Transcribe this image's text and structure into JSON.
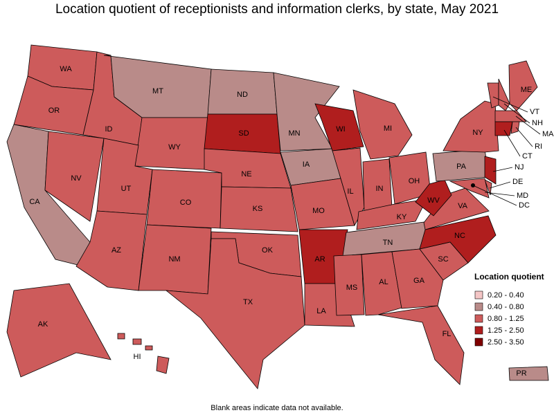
{
  "title": "Location quotient of receptionists and information clerks, by state, May 2021",
  "note": "Blank areas indicate data not available.",
  "legend": {
    "title": "Location quotient",
    "items": [
      {
        "label": "0.20 - 0.40",
        "color": "#f4c6c6"
      },
      {
        "label": "0.40 - 0.80",
        "color": "#b98b89"
      },
      {
        "label": "0.80 - 1.25",
        "color": "#cd5b5b"
      },
      {
        "label": "1.25 - 2.50",
        "color": "#b01e1e"
      },
      {
        "label": "2.50 - 3.50",
        "color": "#7f0000"
      }
    ]
  },
  "states": [
    {
      "name": "WA",
      "range": "0.80 - 1.25"
    },
    {
      "name": "OR",
      "range": "0.80 - 1.25"
    },
    {
      "name": "CA",
      "range": "0.40 - 0.80"
    },
    {
      "name": "NV",
      "range": "0.80 - 1.25"
    },
    {
      "name": "ID",
      "range": "0.80 - 1.25"
    },
    {
      "name": "MT",
      "range": "0.40 - 0.80"
    },
    {
      "name": "WY",
      "range": "0.80 - 1.25"
    },
    {
      "name": "UT",
      "range": "0.80 - 1.25"
    },
    {
      "name": "AZ",
      "range": "0.80 - 1.25"
    },
    {
      "name": "CO",
      "range": "0.80 - 1.25"
    },
    {
      "name": "NM",
      "range": "0.80 - 1.25"
    },
    {
      "name": "ND",
      "range": "0.40 - 0.80"
    },
    {
      "name": "SD",
      "range": "1.25 - 2.50"
    },
    {
      "name": "NE",
      "range": "0.80 - 1.25"
    },
    {
      "name": "KS",
      "range": "0.80 - 1.25"
    },
    {
      "name": "OK",
      "range": "0.80 - 1.25"
    },
    {
      "name": "TX",
      "range": "0.80 - 1.25"
    },
    {
      "name": "MN",
      "range": "0.40 - 0.80"
    },
    {
      "name": "IA",
      "range": "0.40 - 0.80"
    },
    {
      "name": "MO",
      "range": "0.80 - 1.25"
    },
    {
      "name": "AR",
      "range": "1.25 - 2.50"
    },
    {
      "name": "LA",
      "range": "0.80 - 1.25"
    },
    {
      "name": "WI",
      "range": "1.25 - 2.50"
    },
    {
      "name": "IL",
      "range": "0.80 - 1.25"
    },
    {
      "name": "MI",
      "range": "0.80 - 1.25"
    },
    {
      "name": "IN",
      "range": "0.80 - 1.25"
    },
    {
      "name": "OH",
      "range": "0.80 - 1.25"
    },
    {
      "name": "KY",
      "range": "0.80 - 1.25"
    },
    {
      "name": "TN",
      "range": "0.40 - 0.80"
    },
    {
      "name": "MS",
      "range": "0.80 - 1.25"
    },
    {
      "name": "AL",
      "range": "0.80 - 1.25"
    },
    {
      "name": "GA",
      "range": "0.80 - 1.25"
    },
    {
      "name": "FL",
      "range": "0.80 - 1.25"
    },
    {
      "name": "SC",
      "range": "0.80 - 1.25"
    },
    {
      "name": "NC",
      "range": "1.25 - 2.50"
    },
    {
      "name": "VA",
      "range": "0.80 - 1.25"
    },
    {
      "name": "WV",
      "range": "1.25 - 2.50"
    },
    {
      "name": "PA",
      "range": "0.40 - 0.80"
    },
    {
      "name": "NY",
      "range": "0.80 - 1.25"
    },
    {
      "name": "VT",
      "range": "0.80 - 1.25"
    },
    {
      "name": "NH",
      "range": "0.80 - 1.25"
    },
    {
      "name": "ME",
      "range": "0.80 - 1.25"
    },
    {
      "name": "MA",
      "range": "0.80 - 1.25"
    },
    {
      "name": "CT",
      "range": "1.25 - 2.50"
    },
    {
      "name": "RI",
      "range": "0.80 - 1.25"
    },
    {
      "name": "NJ",
      "range": "1.25 - 2.50"
    },
    {
      "name": "DE",
      "range": "0.80 - 1.25"
    },
    {
      "name": "MD",
      "range": "0.80 - 1.25"
    },
    {
      "name": "DC",
      "range": "0.80 - 1.25"
    },
    {
      "name": "AK",
      "range": "0.80 - 1.25"
    },
    {
      "name": "HI",
      "range": "0.80 - 1.25"
    },
    {
      "name": "PR",
      "range": "0.40 - 0.80"
    }
  ]
}
